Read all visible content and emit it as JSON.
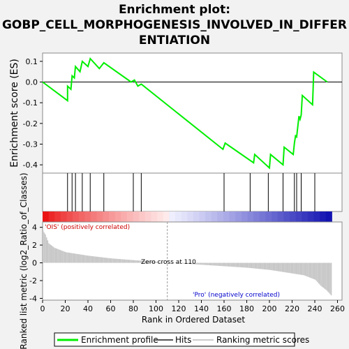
{
  "chart_data": {
    "type": "line",
    "title_lines": [
      "Enrichment plot:",
      "GOBP_CELL_MORPHOGENESIS_INVOLVED_IN_DIFFER",
      "ENTIATION"
    ],
    "es_panel": {
      "ylabel": "Enrichment score (ES)",
      "ylim": [
        -0.44,
        0.14
      ],
      "yticks": [
        "0.1",
        "0.0",
        "-0.1",
        "-0.2",
        "-0.3",
        "-0.4"
      ],
      "ytick_values": [
        0.1,
        0.0,
        -0.1,
        -0.2,
        -0.3,
        -0.4
      ],
      "series": [
        {
          "name": "Enrichment profile",
          "color": "#00ee00",
          "x": [
            0,
            22,
            22,
            25,
            26,
            28,
            29,
            33,
            35,
            40,
            42,
            50,
            54,
            78,
            81,
            84,
            87,
            159,
            161,
            186,
            187,
            200,
            201,
            212,
            213,
            221,
            222,
            223,
            224,
            226,
            227,
            228,
            229,
            238,
            239,
            251
          ],
          "y": [
            0.0,
            -0.09,
            -0.02,
            -0.035,
            0.03,
            0.02,
            0.075,
            0.05,
            0.1,
            0.075,
            0.113,
            0.065,
            0.093,
            0.0,
            0.01,
            -0.02,
            -0.01,
            -0.325,
            -0.295,
            -0.39,
            -0.35,
            -0.415,
            -0.35,
            -0.4,
            -0.315,
            -0.35,
            -0.295,
            -0.26,
            -0.265,
            -0.165,
            -0.18,
            -0.16,
            -0.065,
            -0.11,
            0.048,
            0.0
          ]
        }
      ]
    },
    "hits": {
      "x": [
        22,
        26,
        29,
        35,
        42,
        54,
        80,
        87,
        160,
        183,
        199,
        212,
        222,
        224,
        228,
        240
      ]
    },
    "ranked_panel": {
      "ylabel": "Ranked list metric (log2_Ratio_of_Classes)",
      "xlabel": "Rank in Ordered Dataset",
      "ylim": [
        -4.2,
        4.6
      ],
      "yticks": [
        "4",
        "2",
        "0",
        "-2",
        "-4"
      ],
      "ytick_values": [
        4,
        2,
        0,
        -2,
        -4
      ],
      "xticks": [
        "0",
        "20",
        "40",
        "60",
        "80",
        "100",
        "120",
        "140",
        "160",
        "180",
        "200",
        "220",
        "240",
        "260"
      ],
      "xtick_values": [
        0,
        20,
        40,
        60,
        80,
        100,
        120,
        140,
        160,
        180,
        200,
        220,
        240,
        260
      ],
      "xlim": [
        0,
        264
      ],
      "n": 255,
      "zero_cross": 110,
      "zero_cross_label": "Zero cross at 110",
      "pos_label": "'OIS' (positively correlated)",
      "neg_label": "'Pro' (negatively correlated)",
      "pos_color": "#cc0000",
      "neg_color": "#0000cc",
      "metric_profile": {
        "rank": [
          0,
          2,
          5,
          10,
          20,
          40,
          60,
          80,
          100,
          110,
          120,
          150,
          180,
          200,
          215,
          230,
          240,
          245,
          250,
          255
        ],
        "value": [
          3.6,
          3.2,
          2.2,
          1.7,
          1.2,
          0.8,
          0.5,
          0.3,
          0.12,
          0.0,
          -0.05,
          -0.3,
          -0.55,
          -0.8,
          -1.1,
          -1.4,
          -1.9,
          -2.6,
          -3.1,
          -3.8
        ]
      }
    },
    "legend": [
      {
        "label": "Enrichment profile",
        "color": "#00ee00"
      },
      {
        "label": "Hits",
        "color": "#555555"
      },
      {
        "label": "Ranking metric scores",
        "color": "#cccccc"
      }
    ]
  }
}
